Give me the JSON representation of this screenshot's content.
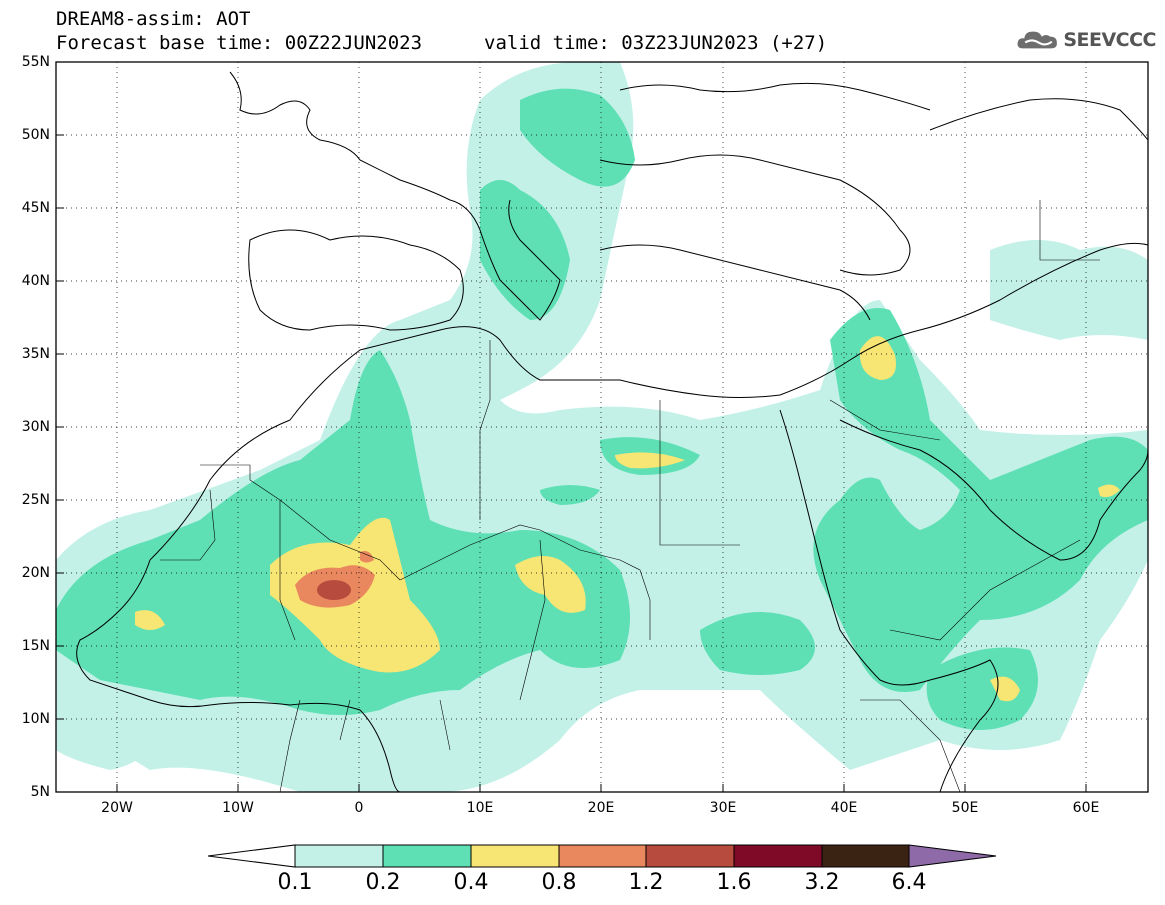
{
  "header": {
    "title_line1": "DREAM8-assim: AOT",
    "title_line2": "Forecast base time: 00Z22JUN2023",
    "valid_time": "valid time: 03Z23JUN2023 (+27)"
  },
  "logo": {
    "text": "SEEVCCC",
    "icon": "cloud-icon"
  },
  "axes": {
    "lon_labels": [
      "20W",
      "10W",
      "0",
      "10E",
      "20E",
      "30E",
      "40E",
      "50E",
      "60E"
    ],
    "lat_labels": [
      "55N",
      "50N",
      "45N",
      "40N",
      "35N",
      "30N",
      "25N",
      "20N",
      "15N",
      "10N",
      "5N"
    ],
    "lon_range": [
      -25,
      65
    ],
    "lat_range": [
      5,
      55
    ],
    "grid": "dotted"
  },
  "colorbar": {
    "levels": [
      "0.1",
      "0.2",
      "0.4",
      "0.8",
      "1.2",
      "1.6",
      "3.2",
      "6.4"
    ],
    "colors": [
      "#ffffff",
      "#c3f1e8",
      "#5ee0b4",
      "#f7e574",
      "#e9875e",
      "#b74c3e",
      "#7e0a27",
      "#3b2313",
      "#8e6aa8"
    ]
  }
}
